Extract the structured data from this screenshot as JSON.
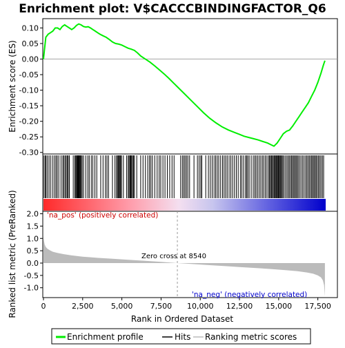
{
  "chart_data": [
    {
      "type": "line",
      "title": "Enrichment plot: V$CACCCBINDINGFACTOR_Q6",
      "ylabel": "Enrichment score (ES)",
      "xlim": [
        0,
        18000
      ],
      "ylim": [
        -0.305,
        0.13
      ],
      "yticks": [
        -0.3,
        -0.25,
        -0.2,
        -0.15,
        -0.1,
        -0.05,
        0.0,
        0.05,
        0.1
      ],
      "ytick_labels": [
        "-0.30",
        "-0.25",
        "-0.20",
        "-0.15",
        "-0.10",
        "-0.05",
        "0.00",
        "0.05",
        "0.10"
      ],
      "series": [
        {
          "name": "Enrichment profile",
          "color": "#00ee00",
          "x": [
            0,
            60,
            150,
            300,
            450,
            600,
            750,
            900,
            1050,
            1200,
            1350,
            1500,
            1650,
            1800,
            1950,
            2100,
            2250,
            2400,
            2550,
            2700,
            2850,
            3000,
            3150,
            3300,
            3450,
            3600,
            3800,
            4000,
            4200,
            4400,
            4600,
            4800,
            5000,
            5200,
            5400,
            5600,
            5800,
            6000,
            6200,
            6500,
            6800,
            7100,
            7400,
            7700,
            8000,
            8300,
            8600,
            9000,
            9400,
            9800,
            10200,
            10600,
            11000,
            11400,
            11800,
            12200,
            12500,
            12800,
            13100,
            13400,
            13700,
            14000,
            14300,
            14500,
            14700,
            14900,
            15100,
            15300,
            15500,
            15700,
            15900,
            16100,
            16300,
            16500,
            16700,
            16900,
            17100,
            17300,
            17500,
            17700,
            17850,
            17950
          ],
          "y": [
            0.0,
            0.03,
            0.07,
            0.08,
            0.085,
            0.09,
            0.1,
            0.1,
            0.095,
            0.105,
            0.11,
            0.105,
            0.1,
            0.095,
            0.1,
            0.108,
            0.113,
            0.11,
            0.105,
            0.103,
            0.104,
            0.1,
            0.095,
            0.09,
            0.085,
            0.08,
            0.075,
            0.07,
            0.063,
            0.055,
            0.05,
            0.048,
            0.045,
            0.04,
            0.035,
            0.032,
            0.028,
            0.02,
            0.01,
            0.0,
            -0.01,
            -0.022,
            -0.035,
            -0.048,
            -0.062,
            -0.077,
            -0.092,
            -0.112,
            -0.132,
            -0.152,
            -0.172,
            -0.19,
            -0.205,
            -0.218,
            -0.228,
            -0.236,
            -0.242,
            -0.248,
            -0.252,
            -0.256,
            -0.26,
            -0.265,
            -0.27,
            -0.275,
            -0.28,
            -0.27,
            -0.255,
            -0.24,
            -0.232,
            -0.228,
            -0.215,
            -0.2,
            -0.185,
            -0.17,
            -0.155,
            -0.14,
            -0.12,
            -0.1,
            -0.075,
            -0.045,
            -0.02,
            -0.005
          ]
        }
      ],
      "zero_line": 0.0
    },
    {
      "type": "heatmap",
      "name": "Hits",
      "hit_positions": [
        30,
        110,
        170,
        260,
        360,
        470,
        600,
        710,
        800,
        880,
        980,
        1120,
        1230,
        1300,
        1380,
        1450,
        1520,
        1580,
        1650,
        1900,
        2000,
        2060,
        2110,
        2160,
        2200,
        2240,
        2280,
        2320,
        2360,
        2410,
        2470,
        2560,
        2700,
        2830,
        2920,
        3050,
        3150,
        3280,
        3400,
        3650,
        3800,
        3950,
        4050,
        4150,
        4400,
        4560,
        4660,
        4720,
        4780,
        4830,
        4880,
        4920,
        4980,
        5100,
        5300,
        5400,
        5460,
        5520,
        5570,
        5620,
        5680,
        5740,
        5800,
        5950,
        6200,
        6350,
        6500,
        6650,
        6760,
        6850,
        6950,
        7100,
        7250,
        7380,
        7480,
        7620,
        7750,
        7900,
        8050,
        8200,
        8330,
        8750,
        8860,
        8950,
        9030,
        9120,
        9210,
        9320,
        9600,
        9820,
        9930,
        10030,
        10100,
        10350,
        10520,
        10640,
        10760,
        10880,
        10980,
        11080,
        11180,
        11300,
        11420,
        11520,
        11620,
        11720,
        11840,
        11950,
        12060,
        12180,
        12300,
        12420,
        12560,
        12650,
        12760,
        12880,
        12960,
        13030,
        13120,
        13250,
        13380,
        13480,
        13560,
        13660,
        13760,
        13860,
        13960,
        14050,
        14150,
        14250,
        14350,
        14420,
        14480,
        14540,
        14600,
        14660,
        14720,
        14780,
        14830,
        14880,
        14930,
        14980,
        15030,
        15090,
        15140,
        15190,
        15260,
        15330,
        15420,
        15520,
        15600,
        15680,
        15760,
        15830,
        15900,
        15970,
        16040,
        16110,
        16180,
        16250,
        16340,
        16430,
        16530,
        16620,
        16720,
        16800,
        16880,
        16960,
        17040,
        17110,
        17180,
        17250,
        17320,
        17390,
        17460,
        17540,
        17620,
        17700,
        17790,
        17870
      ],
      "colorbar_positive": "#ff0000",
      "colorbar_negative": "#0000ff"
    },
    {
      "type": "area",
      "ylabel": "Ranked list metric (PreRanked)",
      "xlabel": "Rank in Ordered Dataset",
      "xlim": [
        0,
        18000
      ],
      "ylim": [
        -1.4,
        2.1
      ],
      "yticks": [
        -1.0,
        -0.5,
        0.0,
        0.5,
        1.0,
        1.5,
        2.0
      ],
      "ytick_labels": [
        "-1.0",
        "-0.5",
        "0.0",
        "0.5",
        "1.0",
        "1.5",
        "2.0"
      ],
      "xticks": [
        0,
        2500,
        5000,
        7500,
        10000,
        12500,
        15000,
        17500
      ],
      "xtick_labels": [
        "0",
        "2,500",
        "5,000",
        "7,500",
        "10,000",
        "12,500",
        "15,000",
        "17,500"
      ],
      "series": [
        {
          "name": "Ranking metric scores",
          "color": "#bbbbbb",
          "x": [
            0,
            30,
            80,
            150,
            250,
            400,
            600,
            900,
            1300,
            1800,
            2500,
            3500,
            4500,
            5500,
            6500,
            7500,
            8540,
            9500,
            10500,
            11500,
            12500,
            13500,
            14500,
            15500,
            16200,
            16800,
            17200,
            17500,
            17700,
            17820,
            17900,
            17950
          ],
          "y": [
            1.1,
            0.9,
            0.75,
            0.65,
            0.58,
            0.52,
            0.46,
            0.41,
            0.36,
            0.31,
            0.26,
            0.21,
            0.17,
            0.13,
            0.09,
            0.05,
            0.0,
            -0.04,
            -0.08,
            -0.12,
            -0.16,
            -0.2,
            -0.24,
            -0.29,
            -0.33,
            -0.38,
            -0.43,
            -0.5,
            -0.58,
            -0.7,
            -0.9,
            -1.35
          ]
        }
      ],
      "annotations": {
        "pos_label": "'na_pos' (positively correlated)",
        "neg_label": "'na_neg' (negatively correlated)",
        "zero_cross_label": "Zero cross at 8540",
        "zero_cross": 8540
      }
    }
  ],
  "legend": {
    "items": [
      {
        "label": "Enrichment profile",
        "color": "#00ee00"
      },
      {
        "label": "Hits",
        "color": "#000000"
      },
      {
        "label": "Ranking metric scores",
        "color": "#bbbbbb"
      }
    ]
  }
}
